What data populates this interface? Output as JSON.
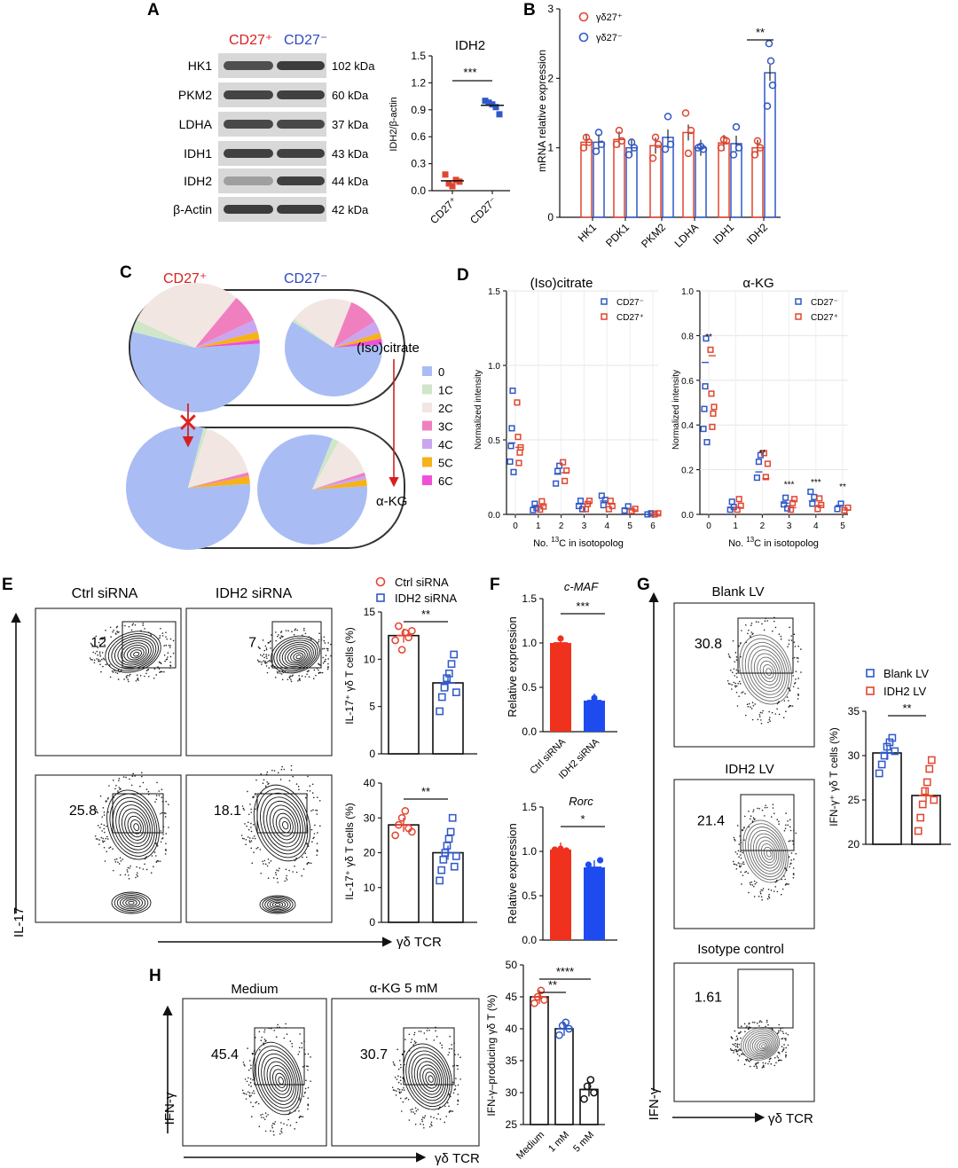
{
  "colors": {
    "red": "#e2452f",
    "blue": "#2f58c8",
    "pinkred": "#d62020",
    "darkblue": "#2f48c0",
    "bar_red": "#f0311e",
    "bar_blue": "#1e4bf0"
  },
  "panelA": {
    "letter": "A",
    "head_pos": "CD27⁺",
    "head_neg": "CD27⁻",
    "rows": [
      {
        "protein": "HK1",
        "size": "102 kDa"
      },
      {
        "protein": "PKM2",
        "size": "60 kDa"
      },
      {
        "protein": "LDHA",
        "size": "37 kDa"
      },
      {
        "protein": "IDH1",
        "size": "43 kDa"
      },
      {
        "protein": "IDH2",
        "size": "44 kDa"
      },
      {
        "protein": "β-Actin",
        "size": "42 kDa"
      }
    ],
    "plot": {
      "title": "IDH2",
      "ylabel": "IDH2/β-actin",
      "ticks": [
        "0.0",
        "0.3",
        "0.6",
        "0.9",
        "1.2",
        "1.5"
      ],
      "xcats": [
        "CD27⁺",
        "CD27⁻"
      ],
      "sig": "***"
    }
  },
  "panelB": {
    "letter": "B",
    "ylabel": "mRNA relative expression",
    "legend": [
      "γδ27⁺",
      "γδ27⁻"
    ],
    "ticks": [
      "0",
      "1",
      "2",
      "3"
    ],
    "sig": "**"
  },
  "panelC": {
    "letter": "C",
    "head_pos": "CD27⁺",
    "head_neg": "CD27⁻",
    "metab_top": "(Iso)citrate",
    "metab_bottom": "α-KG",
    "legend": [
      {
        "label": "0",
        "color": "#a9bdf4"
      },
      {
        "label": "1C",
        "color": "#cfe6c8"
      },
      {
        "label": "2C",
        "color": "#f2e6e2"
      },
      {
        "label": "3C",
        "color": "#f07fc0"
      },
      {
        "label": "4C",
        "color": "#c9a6f0"
      },
      {
        "label": "5C",
        "color": "#f6b21a"
      },
      {
        "label": "6C",
        "color": "#f04fd8"
      }
    ]
  },
  "panelD": {
    "letter": "D",
    "left": {
      "title": "(Iso)citrate",
      "xlabel_pre": "No. ",
      "xlabel_sup": "13",
      "xlabel_post": "C in isotopolog",
      "ylabel": "Normalized intensity",
      "ticks": [
        "0.0",
        "0.5",
        "1.0",
        "1.5"
      ],
      "xticks": [
        "0",
        "1",
        "2",
        "3",
        "4",
        "5",
        "6"
      ],
      "legend": [
        "CD27⁻",
        "CD27⁺"
      ]
    },
    "right": {
      "title": "α-KG",
      "xlabel_pre": "No. ",
      "xlabel_sup": "13",
      "xlabel_post": "C in isotopolog",
      "ylabel": "Normalized intensity",
      "ticks": [
        "0.0",
        "0.2",
        "0.4",
        "0.6",
        "0.8",
        "1.0"
      ],
      "xticks": [
        "0",
        "1",
        "2",
        "3",
        "4",
        "5"
      ],
      "legend": [
        "CD27⁻",
        "CD27⁺"
      ],
      "sigs": [
        "**",
        "**",
        "***",
        "***",
        "**"
      ]
    }
  },
  "panelE": {
    "letter": "E",
    "col1": "Ctrl siRNA",
    "col2": "IDH2 siRNA",
    "vals": [
      "12",
      "7",
      "25.8",
      "18.1"
    ],
    "yaxis": "IL-17",
    "xaxis": "γδ TCR",
    "legend": [
      "Ctrl siRNA",
      "IDH2 siRNA"
    ],
    "plot_ylabel": "IL-17⁺ γδ T cells (%)",
    "top_ticks": [
      "0",
      "5",
      "10",
      "15"
    ],
    "bottom_ticks": [
      "0",
      "10",
      "20",
      "30",
      "40"
    ],
    "sig1": "**",
    "sig2": "**"
  },
  "panelF": {
    "letter": "F",
    "gene1": "c-MAF",
    "gene2": "Rorc",
    "ylabel": "Relative expression",
    "ticks1": [
      "0.0",
      "0.5",
      "1.0",
      "1.5"
    ],
    "ticks2": [
      "0.0",
      "0.5",
      "1.0",
      "1.5"
    ],
    "xcats": [
      "Ctrl siRNA",
      "IDH2 siRNA"
    ],
    "sig1": "***",
    "sig2": "*"
  },
  "panelG": {
    "letter": "G",
    "titles": [
      "Blank LV",
      "IDH2 LV",
      "Isotype control"
    ],
    "vals": [
      "30.8",
      "21.4",
      "1.61"
    ],
    "yaxis": "IFN-γ",
    "xaxis": "γδ TCR",
    "legend": [
      "Blank LV",
      "IDH2 LV"
    ],
    "plot_ylabel": "IFN-γ⁺ γδ T cells (%)",
    "ticks": [
      "20",
      "25",
      "30",
      "35"
    ],
    "sig": "**"
  },
  "panelH": {
    "letter": "H",
    "titles": [
      "Medium",
      "α-KG 5 mM"
    ],
    "vals": [
      "45.4",
      "30.7"
    ],
    "yaxis": "IFN-γ",
    "xaxis": "γδ TCR",
    "plot_ylabel": "IFN-γ–producing γδ T (%)",
    "ticks": [
      "25",
      "30",
      "35",
      "40",
      "45",
      "50"
    ],
    "xcats": [
      "Medium",
      "1 mM",
      "5 mM"
    ],
    "sig1": "**",
    "sig2": "****"
  },
  "chart_data": [
    {
      "type": "scatter",
      "title": "IDH2",
      "ylabel": "IDH2/β-actin",
      "categories": [
        "CD27⁺",
        "CD27⁻"
      ],
      "ylim": [
        0,
        1.5
      ],
      "series": [
        {
          "name": "CD27⁺",
          "values": [
            0.18,
            0.08,
            0.05,
            0.12,
            0.1
          ],
          "mean": 0.11
        },
        {
          "name": "CD27⁻",
          "values": [
            1.0,
            0.98,
            0.96,
            0.93,
            0.85
          ],
          "mean": 0.95
        }
      ]
    },
    {
      "type": "bar",
      "ylabel": "mRNA relative expression",
      "categories": [
        "HK1",
        "PDK1",
        "PKM2",
        "LDHA",
        "IDH1",
        "IDH2"
      ],
      "ylim": [
        0,
        3
      ],
      "series": [
        {
          "name": "γδ27⁺",
          "values": [
            1.08,
            1.12,
            1.03,
            1.22,
            1.07,
            1.0
          ]
        },
        {
          "name": "γδ27⁻",
          "values": [
            1.08,
            1.0,
            1.15,
            1.0,
            1.06,
            2.08
          ]
        }
      ]
    },
    {
      "type": "pie",
      "title": "(Iso)citrate CD27⁺ / CD27⁻ and α-KG CD27⁺ / CD27⁻ isotopolog fractions",
      "categories": [
        "0",
        "1C",
        "2C",
        "3C",
        "4C",
        "5C",
        "6C"
      ],
      "series": [
        {
          "name": "(Iso)citrate CD27⁺",
          "values": [
            55,
            3,
            29,
            7,
            3,
            2,
            1
          ]
        },
        {
          "name": "(Iso)citrate CD27⁻",
          "values": [
            60,
            1,
            21,
            10,
            4,
            2,
            2
          ]
        },
        {
          "name": "α-KG CD27⁺",
          "values": [
            80,
            1,
            16,
            1,
            0,
            2,
            0
          ]
        },
        {
          "name": "α-KG CD27⁻",
          "values": [
            82,
            2,
            12,
            1,
            1,
            2,
            0
          ]
        }
      ]
    },
    {
      "type": "scatter",
      "title": "(Iso)citrate",
      "xlabel": "No. 13C in isotopolog",
      "ylabel": "Normalized intensity",
      "x": [
        0,
        1,
        2,
        3,
        4,
        5,
        6
      ],
      "ylim": [
        0,
        1.5
      ],
      "series": [
        {
          "name": "CD27⁻",
          "values": [
            0.48,
            0.05,
            0.27,
            0.07,
            0.09,
            0.04,
            0.0
          ]
        },
        {
          "name": "CD27⁺",
          "values": [
            0.45,
            0.06,
            0.28,
            0.07,
            0.07,
            0.03,
            0.0
          ]
        }
      ]
    },
    {
      "type": "scatter",
      "title": "α-KG",
      "xlabel": "No. 13C in isotopolog",
      "ylabel": "Normalized intensity",
      "x": [
        0,
        1,
        2,
        3,
        4,
        5
      ],
      "ylim": [
        0,
        1.0
      ],
      "series": [
        {
          "name": "CD27⁻",
          "values": [
            0.68,
            0.03,
            0.19,
            0.05,
            0.06,
            0.04
          ]
        },
        {
          "name": "CD27⁺",
          "values": [
            0.71,
            0.03,
            0.16,
            0.03,
            0.04,
            0.02
          ]
        }
      ]
    },
    {
      "type": "bar",
      "title": "E top",
      "ylabel": "IL-17⁺ γδ T cells (%)",
      "categories": [
        "Ctrl siRNA",
        "IDH2 siRNA"
      ],
      "ylim": [
        0,
        15
      ],
      "values": [
        12.5,
        7.5
      ]
    },
    {
      "type": "bar",
      "title": "E bottom",
      "ylabel": "IL-17⁺ γδ T cells (%)",
      "categories": [
        "Ctrl siRNA",
        "IDH2 siRNA"
      ],
      "ylim": [
        0,
        40
      ],
      "values": [
        28,
        20
      ]
    },
    {
      "type": "bar",
      "title": "c-MAF",
      "ylabel": "Relative expression",
      "categories": [
        "Ctrl siRNA",
        "IDH2 siRNA"
      ],
      "ylim": [
        0,
        1.5
      ],
      "values": [
        1.0,
        0.35
      ]
    },
    {
      "type": "bar",
      "title": "Rorc",
      "ylabel": "Relative expression",
      "categories": [
        "Ctrl siRNA",
        "IDH2 siRNA"
      ],
      "ylim": [
        0,
        1.5
      ],
      "values": [
        1.02,
        0.82
      ]
    },
    {
      "type": "bar",
      "title": "G",
      "ylabel": "IFN-γ⁺ γδ T cells (%)",
      "categories": [
        "Blank LV",
        "IDH2 LV"
      ],
      "ylim": [
        20,
        35
      ],
      "values": [
        30.3,
        25.5
      ]
    },
    {
      "type": "bar",
      "title": "H",
      "ylabel": "IFN-γ–producing γδ T (%)",
      "categories": [
        "Medium",
        "1 mM",
        "5 mM"
      ],
      "ylim": [
        25,
        50
      ],
      "values": [
        45,
        40,
        30.5
      ]
    }
  ]
}
